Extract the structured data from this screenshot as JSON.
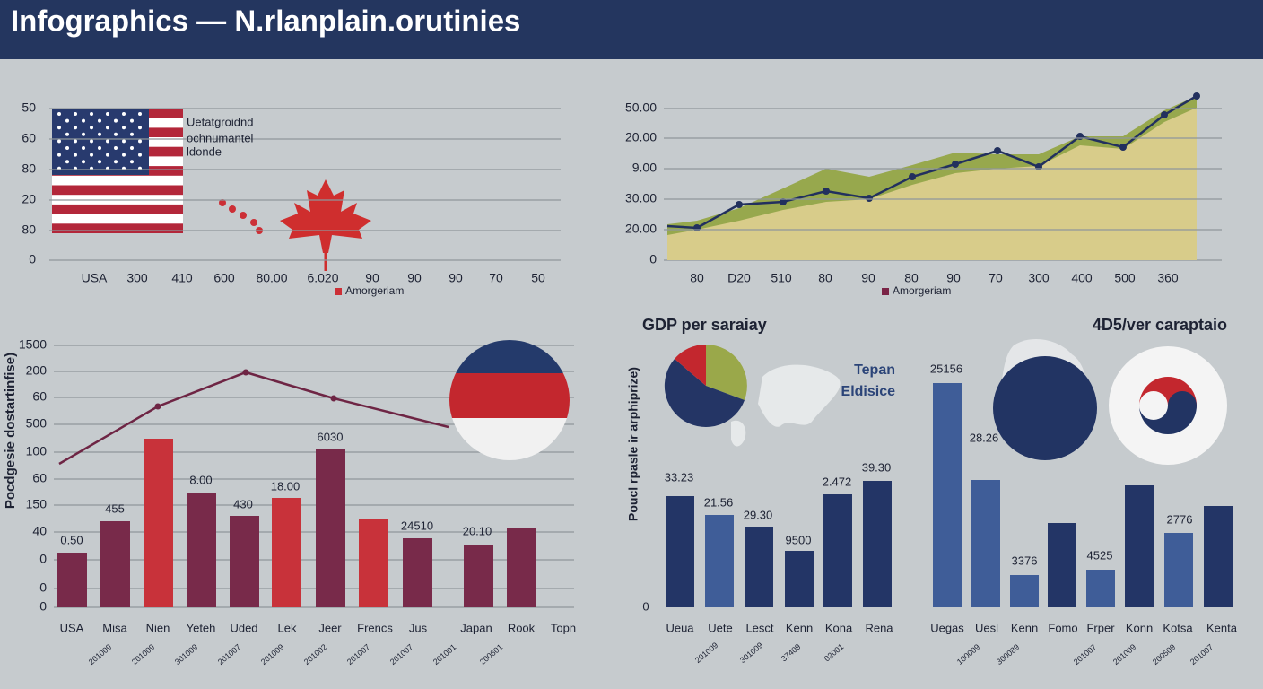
{
  "header": {
    "title": "Infographics — N.rlanplain.orutinies"
  },
  "panels": [
    {
      "y_labels": [
        "50",
        "60",
        "80",
        "20",
        "80",
        "0"
      ],
      "x_labels": [
        "USA",
        "300",
        "410",
        "600",
        "80.00",
        "6.020",
        "90",
        "90",
        "90",
        "70",
        "50"
      ],
      "legend": "Amorgeriam",
      "note": [
        "Uetatgroidnd",
        "ochnumantel",
        "ldonde"
      ]
    },
    {
      "y_labels": [
        "50.00",
        "20.00",
        "9.00",
        "30.00",
        "20.00",
        "0"
      ],
      "x_labels": [
        "80",
        "D20",
        "510",
        "80",
        "90",
        "80",
        "90",
        "70",
        "300",
        "400",
        "500",
        "360"
      ],
      "legend": "Amorgeriam"
    },
    {
      "y_axis_label": "Pocdgesie dostartinfise)",
      "y_labels": [
        "1500",
        "200",
        "60",
        "500",
        "100",
        "60",
        "150",
        "40",
        "0",
        "0",
        "0"
      ],
      "value_labels": [
        "0.50",
        "455",
        "8.00",
        "430",
        "18.00",
        "6030",
        "24510",
        "20.10"
      ],
      "x_labels": [
        "USA",
        "Misa",
        "Nien",
        "Yeteh",
        "Uded",
        "Lek",
        "Jeer",
        "Frencs",
        "Jus",
        "Japan",
        "Rook",
        "Topn"
      ],
      "x_sublabels": [
        "201009",
        "201009",
        "301009",
        "201007",
        "201009",
        "201002",
        "201007",
        "201007",
        "201001",
        "200601"
      ]
    },
    {
      "title": "GDP per saraiay",
      "y_axis_label": "Poucl rpasle ir arphiprize)",
      "map_labels": [
        "Tepan",
        "Eldisice"
      ],
      "y_labels": [
        "0"
      ],
      "value_labels": [
        "33.23",
        "21.56",
        "29.30",
        "9500",
        "2.472",
        "39.30"
      ],
      "x_labels": [
        "Ueua",
        "Uete",
        "Lesct",
        "Kenn",
        "Kona",
        "Rena"
      ],
      "x_sublabels": [
        "201009",
        "301009",
        "37409",
        "02001"
      ]
    },
    {
      "title": "4D5/ver caraptaio",
      "value_labels": [
        "25156",
        "28.26",
        "3376",
        "4525",
        "2776"
      ],
      "x_labels": [
        "Uegas",
        "Uesl",
        "Kenn",
        "Fomo",
        "Frper",
        "Konn",
        "Kotsa",
        "Kenta"
      ],
      "x_sublabels": [
        "100009",
        "300089",
        "201007",
        "201009",
        "200509",
        "201007"
      ]
    }
  ]
}
